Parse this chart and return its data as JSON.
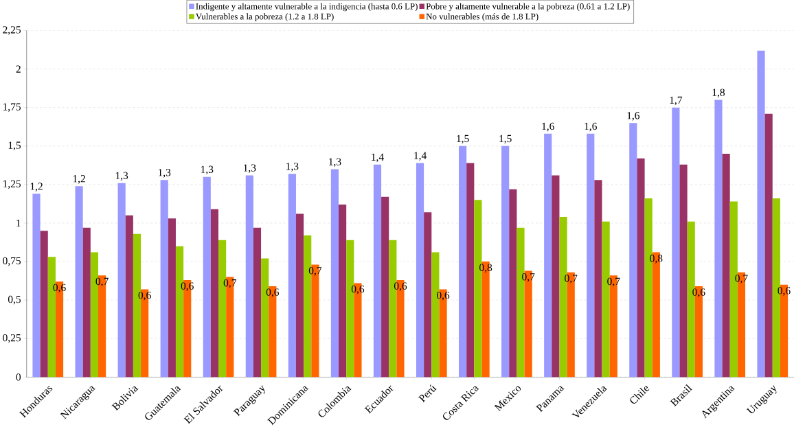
{
  "chart_data": {
    "type": "bar",
    "categories": [
      "Honduras",
      "Nicaragua",
      "Bolivia",
      "Guatemala",
      "El Salvador",
      "Paraguay",
      "Dominicana",
      "Colombia",
      "Ecuador",
      "Perú",
      "Costa Rica",
      "Mexico",
      "Panama",
      "Venezuela",
      "Chile",
      "Brasil",
      "Argentina",
      "Uruguay"
    ],
    "series": [
      {
        "name": "Indigente y altamente vulnerable a la indigencia (hasta 0.6 LP)",
        "color": "#9999ff",
        "values": [
          1.19,
          1.24,
          1.26,
          1.28,
          1.3,
          1.31,
          1.32,
          1.35,
          1.38,
          1.39,
          1.5,
          1.5,
          1.58,
          1.58,
          1.65,
          1.75,
          1.8,
          2.12
        ],
        "value_labels": [
          "1,2",
          "1,2",
          "1,3",
          "1,3",
          "1,3",
          "1,3",
          "1,3",
          "1,3",
          "1,4",
          "1,4",
          "1,5",
          "1,5",
          "1,6",
          "1,6",
          "1,6",
          "1,7",
          "1,8",
          null
        ]
      },
      {
        "name": "Pobre y altamente vulnerable a la pobreza (0.61 a 1.2 LP)",
        "color": "#993366",
        "values": [
          0.95,
          0.97,
          1.05,
          1.03,
          1.09,
          0.97,
          1.06,
          1.12,
          1.17,
          1.07,
          1.39,
          1.22,
          1.31,
          1.28,
          1.42,
          1.38,
          1.45,
          1.71
        ]
      },
      {
        "name": "Vulnerables a la pobreza  (1.2 a 1.8 LP)",
        "color": "#99cc00",
        "values": [
          0.78,
          0.81,
          0.93,
          0.85,
          0.89,
          0.77,
          0.92,
          0.89,
          0.89,
          0.81,
          1.15,
          0.97,
          1.04,
          1.01,
          1.16,
          1.01,
          1.14,
          1.16
        ]
      },
      {
        "name": "No vulnerables (más de 1.8 LP)",
        "color": "#ff6600",
        "values": [
          0.62,
          0.66,
          0.57,
          0.63,
          0.65,
          0.59,
          0.73,
          0.61,
          0.63,
          0.57,
          0.75,
          0.69,
          0.68,
          0.66,
          0.81,
          0.59,
          0.68,
          0.6
        ],
        "value_labels": [
          "0,6",
          "0,7",
          "0,6",
          "0,6",
          "0,7",
          "0,6",
          "0,7",
          "0,6",
          "0,6",
          "0,6",
          "0,8",
          "0,7",
          "0,7",
          "0,7",
          "0,8",
          "0,6",
          "0,7",
          "0,6"
        ]
      }
    ],
    "ylim": [
      0,
      2.25
    ],
    "yticks": [
      {
        "value": 0,
        "label": "0"
      },
      {
        "value": 0.25,
        "label": "0,25"
      },
      {
        "value": 0.5,
        "label": "0,5"
      },
      {
        "value": 0.75,
        "label": "0,75"
      },
      {
        "value": 1,
        "label": "1"
      },
      {
        "value": 1.25,
        "label": "1,25"
      },
      {
        "value": 1.5,
        "label": "1,5"
      },
      {
        "value": 1.75,
        "label": "1,75"
      },
      {
        "value": 2,
        "label": "2"
      },
      {
        "value": 2.25,
        "label": "2,25"
      }
    ],
    "grid": "y",
    "legend": "top"
  }
}
